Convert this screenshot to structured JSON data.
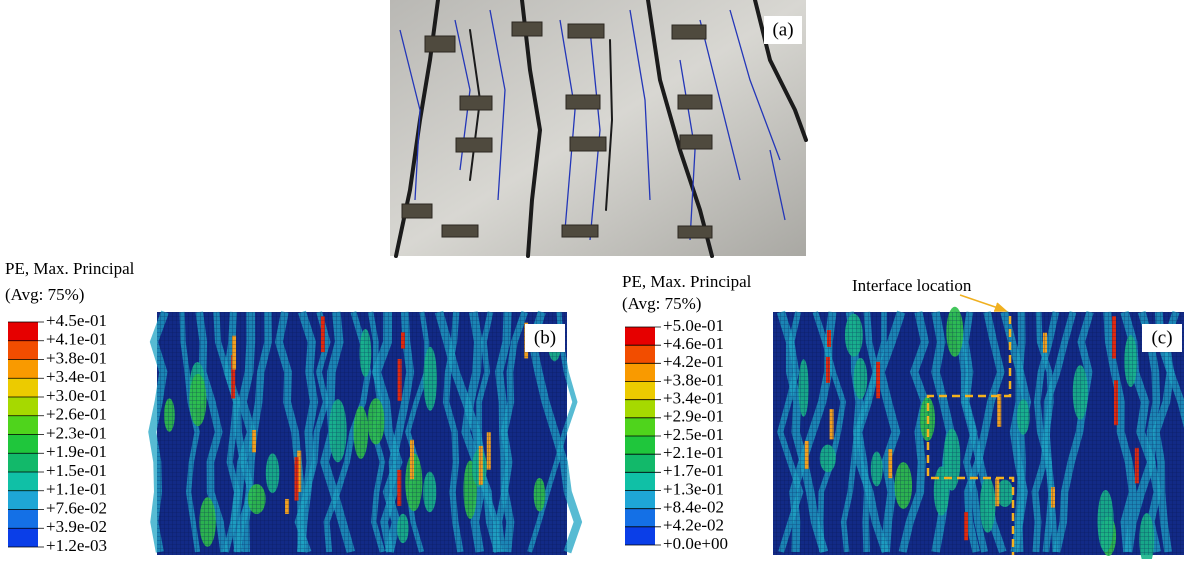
{
  "photo": {
    "label": "(a)"
  },
  "legend_colors": [
    "#e60000",
    "#f24d00",
    "#f99a00",
    "#eccb00",
    "#a6d900",
    "#4fd41c",
    "#1fc63c",
    "#12b96a",
    "#10c0a6",
    "#1ea6d6",
    "#1470e6",
    "#0a3ee8"
  ],
  "panel_b": {
    "label": "(b)",
    "legend": {
      "title": "PE, Max. Principal",
      "subtitle": "(Avg: 75%)",
      "entries": [
        "+4.5e-01",
        "+4.1e-01",
        "+3.8e-01",
        "+3.4e-01",
        "+3.0e-01",
        "+2.6e-01",
        "+2.3e-01",
        "+1.9e-01",
        "+1.5e-01",
        "+1.1e-01",
        "+7.6e-02",
        "+3.9e-02",
        "+1.2e-03"
      ]
    }
  },
  "panel_c": {
    "label": "(c)",
    "annotation": "Interface location",
    "legend": {
      "title": "PE, Max. Principal",
      "subtitle": "(Avg: 75%)",
      "entries": [
        "+5.0e-01",
        "+4.6e-01",
        "+4.2e-01",
        "+3.8e-01",
        "+3.4e-01",
        "+2.9e-01",
        "+2.5e-01",
        "+2.1e-01",
        "+1.7e-01",
        "+1.3e-01",
        "+8.4e-02",
        "+4.2e-02",
        "+0.0e+00"
      ]
    }
  }
}
